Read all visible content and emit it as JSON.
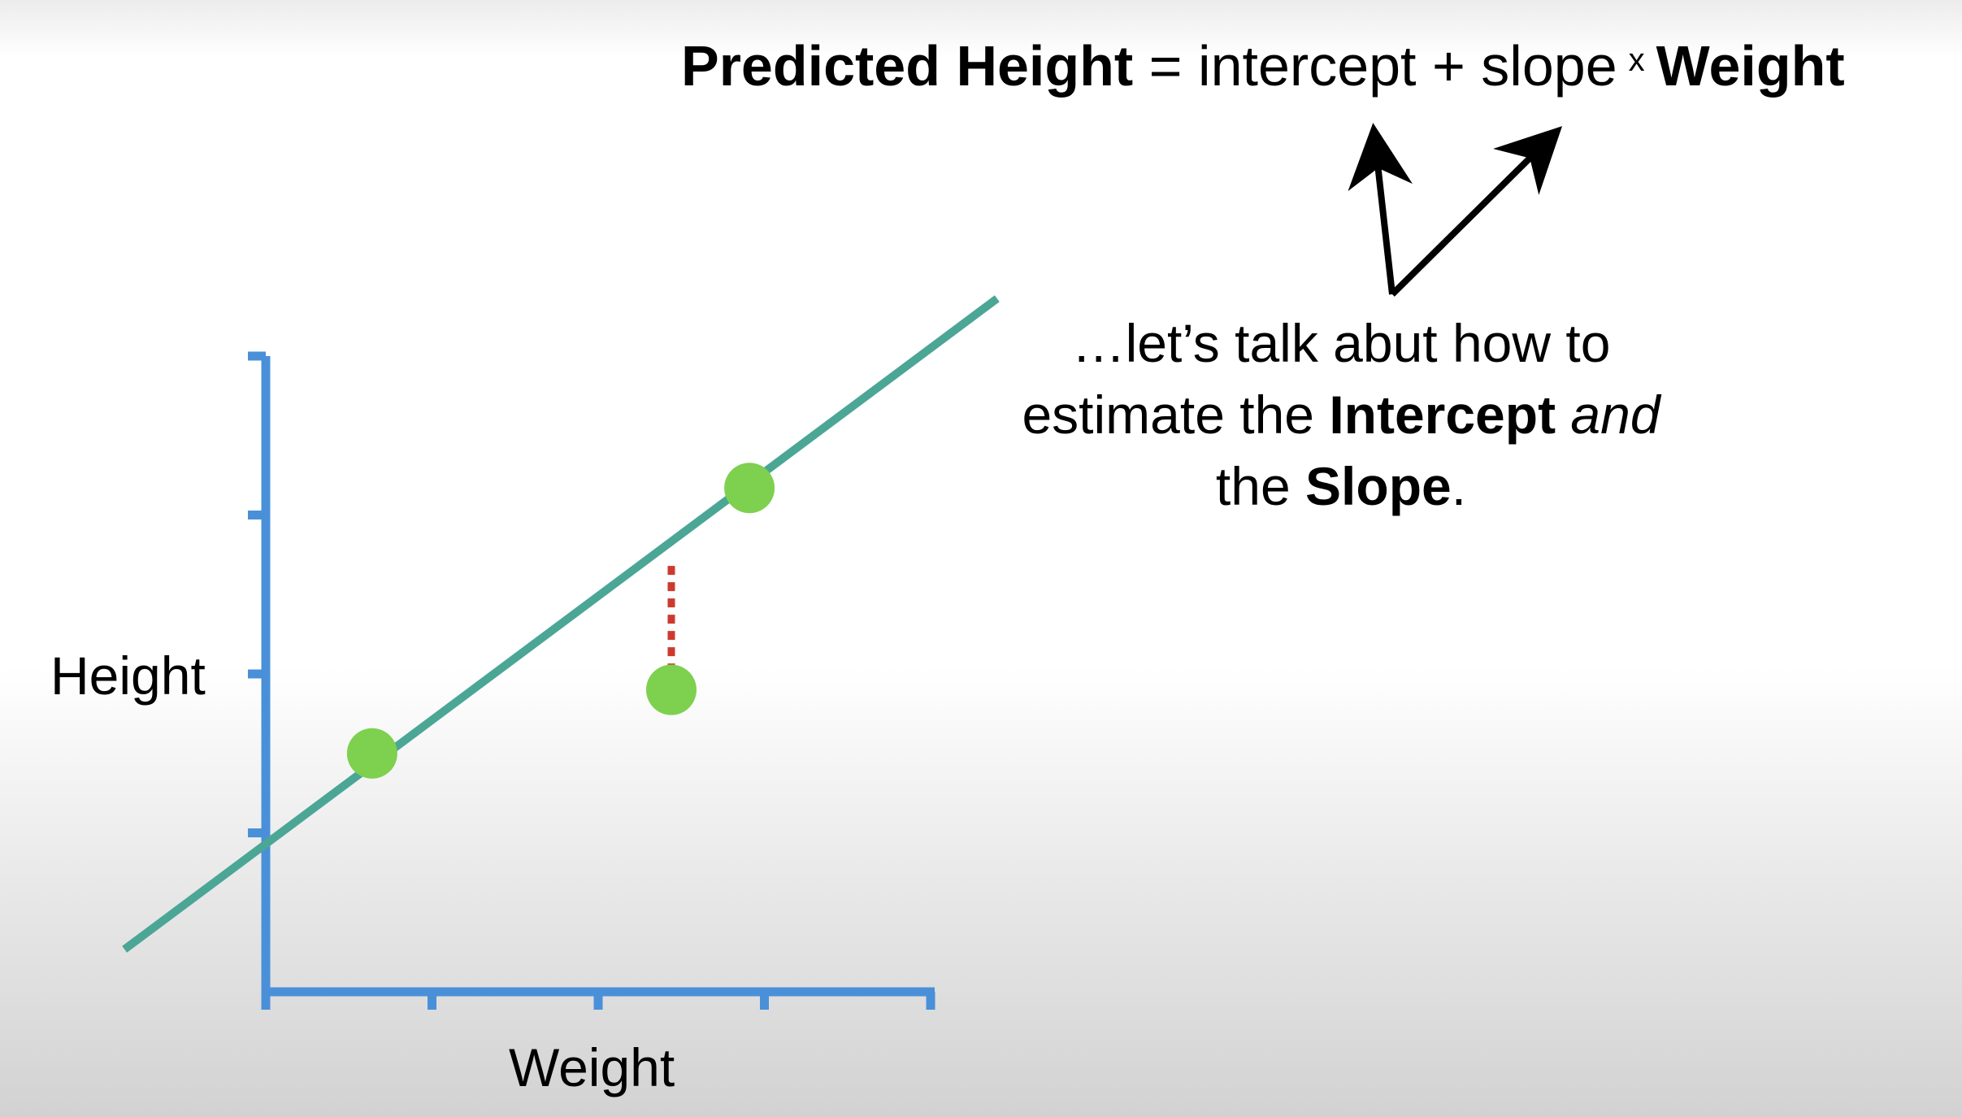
{
  "equation": {
    "lhs": "Predicted Height",
    "equals": "=",
    "intercept": "intercept",
    "plus": "+",
    "slope": "slope",
    "times": "x",
    "rhs_var": "Weight"
  },
  "caption": {
    "line1": "…let’s talk abut how to",
    "line2_pre": "estimate the ",
    "intercept_word": "Intercept",
    "and_word": "and",
    "line3_pre": "the ",
    "slope_word": "Slope",
    "period": "."
  },
  "chart_data": {
    "type": "scatter",
    "xlabel": "Weight",
    "ylabel": "Height",
    "x_ticks": 5,
    "y_ticks": 4,
    "xlim": [
      0,
      4
    ],
    "ylim": [
      0,
      4
    ],
    "points": [
      {
        "x": 0.64,
        "y": 1.5
      },
      {
        "x": 2.44,
        "y": 1.9
      },
      {
        "x": 2.91,
        "y": 3.17
      }
    ],
    "fit_line": {
      "intercept": 0.93,
      "slope": 0.78
    },
    "residuals_shown_for": [
      1,
      2
    ],
    "colors": {
      "axis": "#4a90d9",
      "line": "#4ba696",
      "points": "#7ed04f",
      "residual": "#cc3a2e"
    }
  },
  "arrows": {
    "color": "#000000",
    "targets": [
      "intercept",
      "slope"
    ]
  }
}
